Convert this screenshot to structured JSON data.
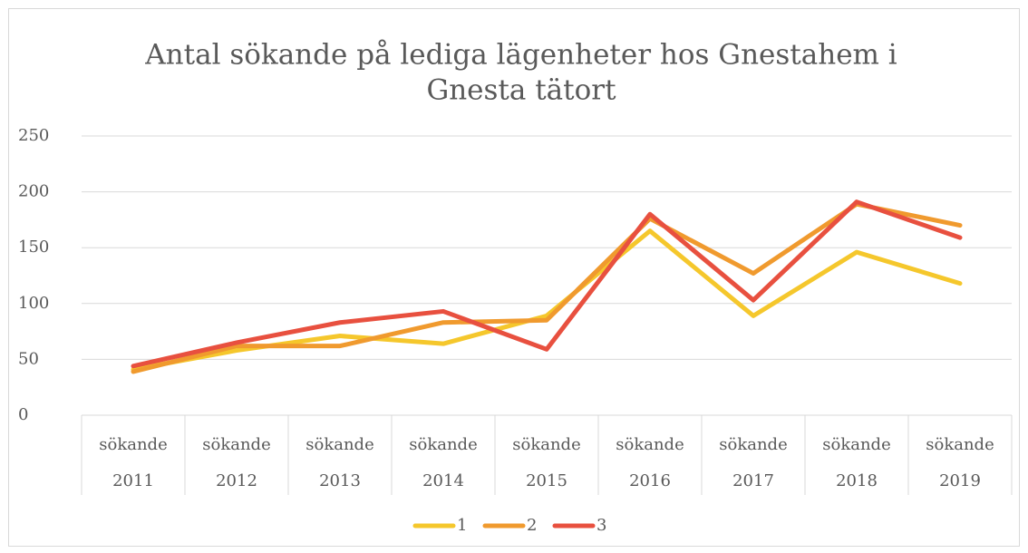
{
  "chart_data": {
    "type": "line",
    "title": [
      "Antal sökande på lediga lägenheter hos Gnestahem i",
      "Gnesta tätort"
    ],
    "categories": [
      [
        "sökande",
        "2011"
      ],
      [
        "sökande",
        "2012"
      ],
      [
        "sökande",
        "2013"
      ],
      [
        "sökande",
        "2014"
      ],
      [
        "sökande",
        "2015"
      ],
      [
        "sökande",
        "2016"
      ],
      [
        "sökande",
        "2017"
      ],
      [
        "sökande",
        "2018"
      ],
      [
        "sökande",
        "2019"
      ]
    ],
    "series": [
      {
        "name": "1",
        "color": "#f5c72c",
        "values": [
          41,
          58,
          71,
          64,
          89,
          165,
          89,
          146,
          118
        ]
      },
      {
        "name": "2",
        "color": "#f09a2e",
        "values": [
          39,
          62,
          62,
          83,
          85,
          176,
          127,
          189,
          170
        ]
      },
      {
        "name": "3",
        "color": "#e8503f",
        "values": [
          44,
          65,
          83,
          93,
          59,
          180,
          103,
          191,
          159
        ]
      }
    ],
    "ylim": [
      0,
      250
    ],
    "yticks": [
      0,
      50,
      100,
      150,
      200,
      250
    ],
    "grid": true,
    "legend": "bottom"
  }
}
